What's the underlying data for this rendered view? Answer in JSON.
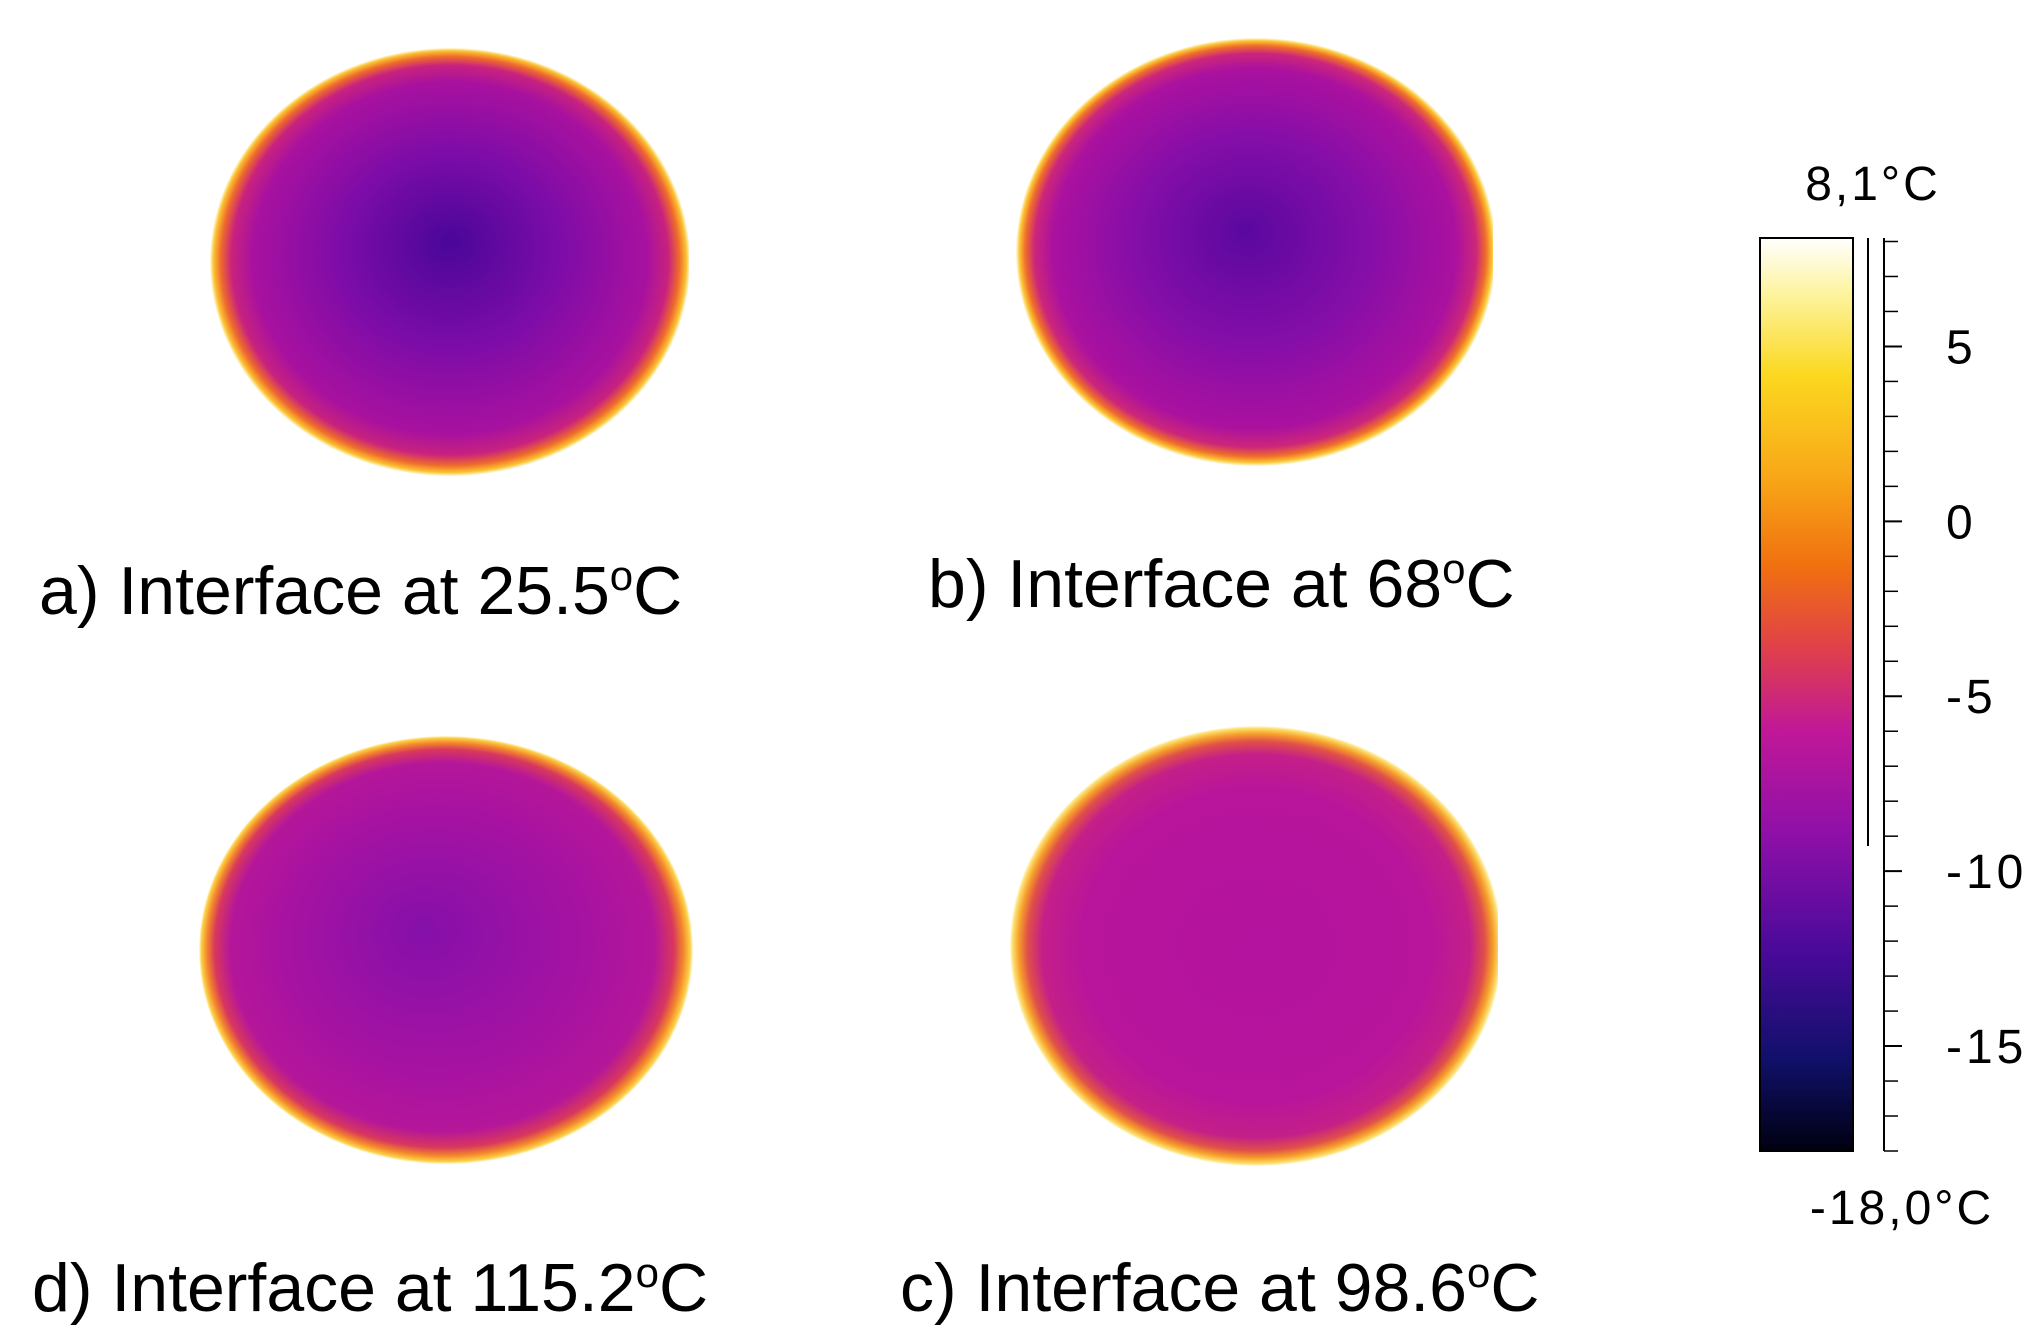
{
  "panels": [
    {
      "caption": {
        "text": "a) Interface at 25.5",
        "sup": "o",
        "unit": "C"
      }
    },
    {
      "caption": {
        "text": "b) Interface at 68",
        "sup": "o",
        "unit": "C"
      }
    },
    {
      "caption": {
        "text": "d) Interface at 115.2",
        "sup": "o",
        "unit": "C"
      }
    },
    {
      "caption": {
        "text": "c) Interface at 98.6",
        "sup": "o",
        "unit": "C"
      }
    }
  ],
  "colorbar": {
    "max": {
      "value": 8.1,
      "label": "8,1°C"
    },
    "min": {
      "value": -18.0,
      "label": "-18,0°C"
    },
    "ticks": [
      5,
      0,
      -5,
      -10,
      -15
    ],
    "minor_ticks": [
      8,
      7,
      6,
      4,
      3,
      2,
      1,
      -1,
      -2,
      -3,
      -4,
      -6,
      -7,
      -8,
      -9,
      -11,
      -12,
      -13,
      -14,
      -16,
      -17,
      -18
    ]
  }
}
